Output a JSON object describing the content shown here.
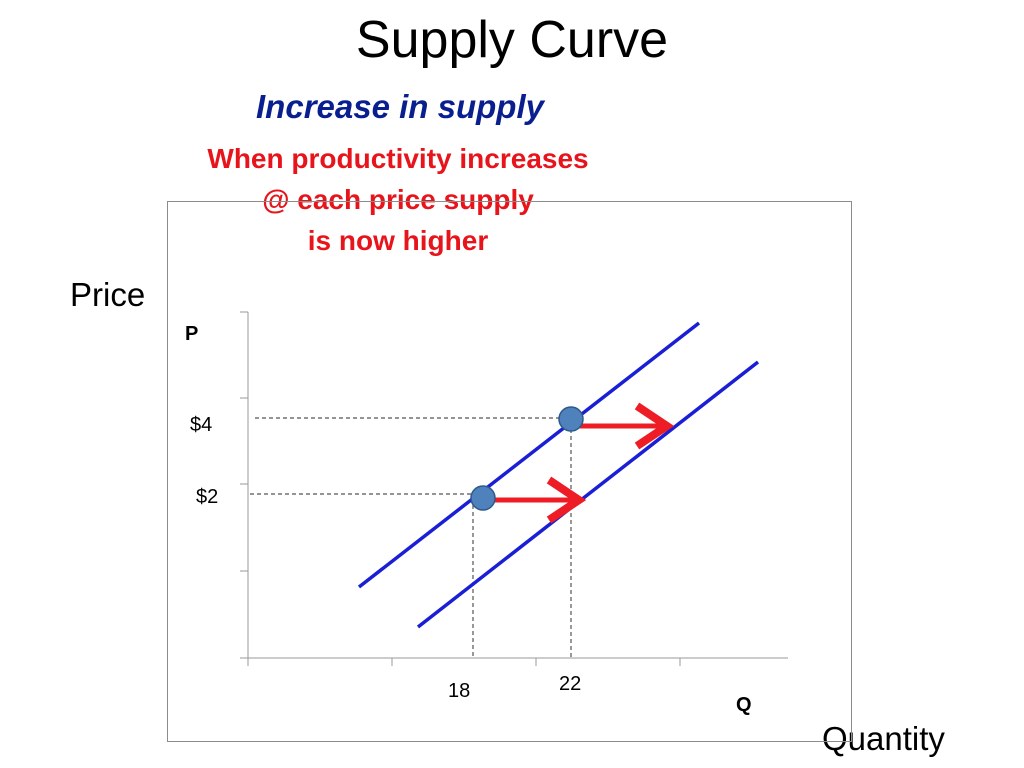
{
  "title": "Supply Curve",
  "subtitle": "Increase in supply",
  "note_lines": [
    "When productivity increases",
    "@ each price supply",
    "is now higher"
  ],
  "outer_labels": {
    "y": "Price",
    "x": "Quantity"
  },
  "colors": {
    "curve": "#1a1fd6",
    "arrow": "#ee1c24",
    "point": "#4f81bd",
    "title_blue": "#0a1f8f",
    "note_red": "#e8141b"
  },
  "chart_data": {
    "type": "line",
    "ylabel": "P",
    "xlabel": "Q",
    "y_ticks": [
      "$4",
      "$2"
    ],
    "x_ticks": [
      "18",
      "22"
    ],
    "points": [
      {
        "price": "$2",
        "quantity": "18"
      },
      {
        "price": "$4",
        "quantity": "22"
      }
    ],
    "series": [
      {
        "name": "",
        "shift": "original supply"
      },
      {
        "name": "",
        "shift": "increased supply (shifted right)"
      }
    ],
    "arrows": [
      {
        "at_price": "$4",
        "direction": "right"
      },
      {
        "at_price": "$2",
        "direction": "right"
      }
    ]
  }
}
